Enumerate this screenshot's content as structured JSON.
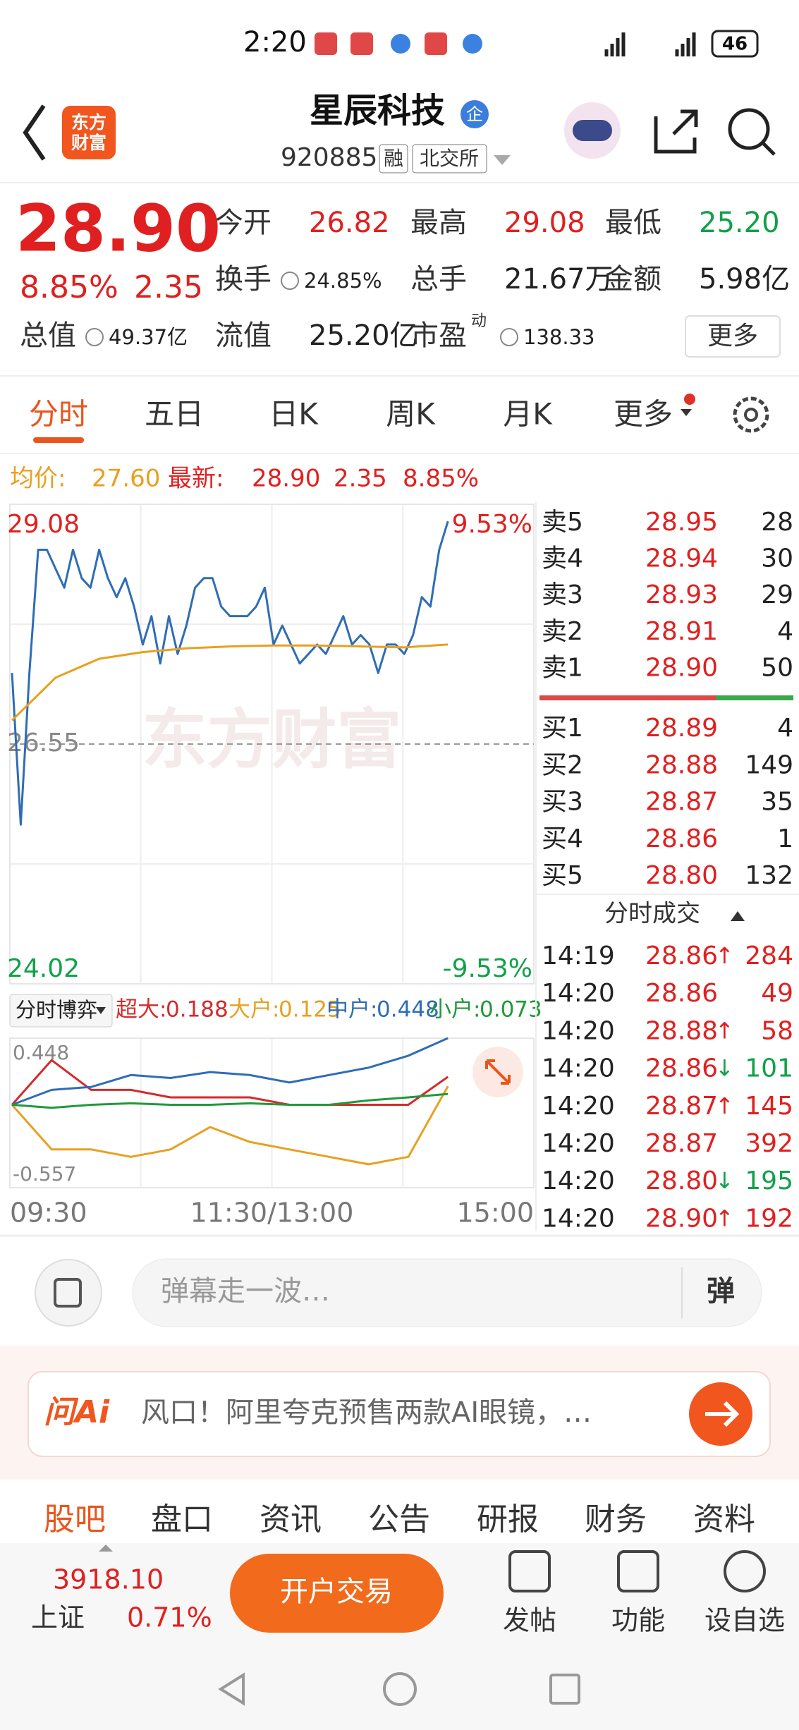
{
  "status_bar": {
    "time": "2:20",
    "battery": "46"
  },
  "header": {
    "logo": [
      "东方",
      "财富"
    ],
    "title": "星辰科技",
    "badge": "企",
    "code": "920885",
    "tags": [
      "融",
      "北交所"
    ]
  },
  "quote": {
    "price": "28.90",
    "pct": "8.85%",
    "change": "2.35",
    "fields": [
      {
        "label": "今开",
        "value": "26.82",
        "color": "#e02020"
      },
      {
        "label": "最高",
        "value": "29.08",
        "color": "#e02020"
      },
      {
        "label": "最低",
        "value": "25.20",
        "color": "#12a04a"
      },
      {
        "label": "换手",
        "value": "24.85%",
        "info": true
      },
      {
        "label": "总手",
        "value": "21.67万"
      },
      {
        "label": "金额",
        "value": "5.98亿"
      },
      {
        "label": "总值",
        "value": "49.37亿",
        "info": true
      },
      {
        "label": "流值",
        "value": "25.20亿"
      },
      {
        "label": "市盈",
        "sup": "动",
        "value": "138.33",
        "info": true
      }
    ],
    "more": "更多"
  },
  "tabs": {
    "items": [
      "分时",
      "五日",
      "日K",
      "周K",
      "月K",
      "更多"
    ],
    "active": 0
  },
  "summary": {
    "avg_label": "均价:",
    "avg": "27.60",
    "latest_label": "最新:",
    "latest": "28.90",
    "change": "2.35",
    "pct": "8.85%"
  },
  "chart_data": [
    {
      "type": "line",
      "watermark": "东方财富",
      "ylim": [
        24.02,
        29.08
      ],
      "yticks": [
        29.08,
        26.55,
        24.02
      ],
      "y2lim": [
        -9.53,
        9.53
      ],
      "y2ticks": [
        {
          "value": 9.53,
          "label": "9.53%"
        },
        {
          "value": -9.53,
          "label": "-9.53%"
        }
      ],
      "x_labels": [
        "09:30",
        "11:30/13:00",
        "15:00"
      ],
      "series": [
        {
          "color": "#2f6db5",
          "values": [
            27.3,
            25.7,
            27.3,
            28.6,
            28.6,
            28.4,
            28.2,
            28.6,
            28.3,
            28.2,
            28.6,
            28.3,
            28.1,
            28.3,
            28.0,
            27.6,
            27.9,
            27.4,
            27.9,
            27.5,
            27.8,
            28.2,
            28.3,
            28.3,
            28.0,
            27.9,
            27.9,
            27.9,
            28.0,
            28.2,
            27.6,
            27.8,
            27.6,
            27.4,
            27.5,
            27.6,
            27.5,
            27.7,
            27.9,
            27.6,
            27.7,
            27.6,
            27.3,
            27.6,
            27.6,
            27.5,
            27.7,
            28.1,
            28.0,
            28.6,
            28.9
          ]
        },
        {
          "color": "#e8a020",
          "values": [
            26.8,
            27.25,
            27.45,
            27.52,
            27.56,
            27.58,
            27.59,
            27.59,
            27.58,
            27.57,
            27.6
          ]
        }
      ]
    },
    {
      "type": "line",
      "legend_title": "分时博弈",
      "separator": ":",
      "ylim": [
        -0.557,
        0.448
      ],
      "yticks": [
        0.448,
        -0.557
      ],
      "series": [
        {
          "name": "超大",
          "latest": "0.188",
          "color": "#d42b2b",
          "values": [
            0,
            0.3,
            0.1,
            0.1,
            0.05,
            0.05,
            0.05,
            0.0,
            0.0,
            0.0,
            0.0,
            0.188
          ]
        },
        {
          "name": "大户",
          "latest": "0.125",
          "color": "#e8a020",
          "values": [
            0,
            -0.3,
            -0.3,
            -0.35,
            -0.3,
            -0.15,
            -0.25,
            -0.3,
            -0.35,
            -0.4,
            -0.35,
            0.125
          ]
        },
        {
          "name": "中户",
          "latest": "0.448",
          "color": "#2f6db5",
          "values": [
            0,
            0.1,
            0.12,
            0.2,
            0.18,
            0.22,
            0.2,
            0.15,
            0.2,
            0.25,
            0.33,
            0.448
          ]
        },
        {
          "name": "小户",
          "latest": "0.073",
          "color": "#1f9a3a",
          "values": [
            0,
            -0.02,
            0,
            0.01,
            0,
            0,
            0.01,
            0,
            0,
            0.03,
            0.05,
            0.073
          ]
        }
      ]
    }
  ],
  "order_book": {
    "asks": [
      {
        "label": "卖5",
        "price": "28.95",
        "volume": "28"
      },
      {
        "label": "卖4",
        "price": "28.94",
        "volume": "30"
      },
      {
        "label": "卖3",
        "price": "28.93",
        "volume": "29"
      },
      {
        "label": "卖2",
        "price": "28.91",
        "volume": "4"
      },
      {
        "label": "卖1",
        "price": "28.90",
        "volume": "50"
      }
    ],
    "bids": [
      {
        "label": "买1",
        "price": "28.89",
        "volume": "4"
      },
      {
        "label": "买2",
        "price": "28.88",
        "volume": "149"
      },
      {
        "label": "买3",
        "price": "28.87",
        "volume": "35"
      },
      {
        "label": "买4",
        "price": "28.86",
        "volume": "1"
      },
      {
        "label": "买5",
        "price": "28.80",
        "volume": "132"
      }
    ],
    "trades_title": "分时成交",
    "trades": [
      {
        "time": "14:19",
        "price": "28.86",
        "dir": "↑",
        "volume": "284"
      },
      {
        "time": "14:20",
        "price": "28.86",
        "volume": "49"
      },
      {
        "time": "14:20",
        "price": "28.88",
        "dir": "↑",
        "volume": "58"
      },
      {
        "time": "14:20",
        "price": "28.86",
        "dir": "↓",
        "volume": "101"
      },
      {
        "time": "14:20",
        "price": "28.87",
        "dir": "↑",
        "volume": "145"
      },
      {
        "time": "14:20",
        "price": "28.87",
        "volume": "392"
      },
      {
        "time": "14:20",
        "price": "28.80",
        "dir": "↓",
        "volume": "195"
      },
      {
        "time": "14:20",
        "price": "28.90",
        "dir": "↑",
        "volume": "192"
      }
    ]
  },
  "comment": {
    "placeholder": "弹幕走一波…",
    "button": "弹"
  },
  "ai_banner": {
    "logo": "问Ai",
    "text": "风口！阿里夸克预售两款AI眼镜，…"
  },
  "bottom_tabs": {
    "items": [
      "股吧",
      "盘口",
      "资讯",
      "公告",
      "研报",
      "财务",
      "资料"
    ],
    "active": 0
  },
  "footer": {
    "index_value": "3918.10",
    "index_name": "上证",
    "index_pct": "0.71%",
    "trade_button": "开户交易",
    "actions": [
      "发帖",
      "功能",
      "设自选"
    ]
  }
}
